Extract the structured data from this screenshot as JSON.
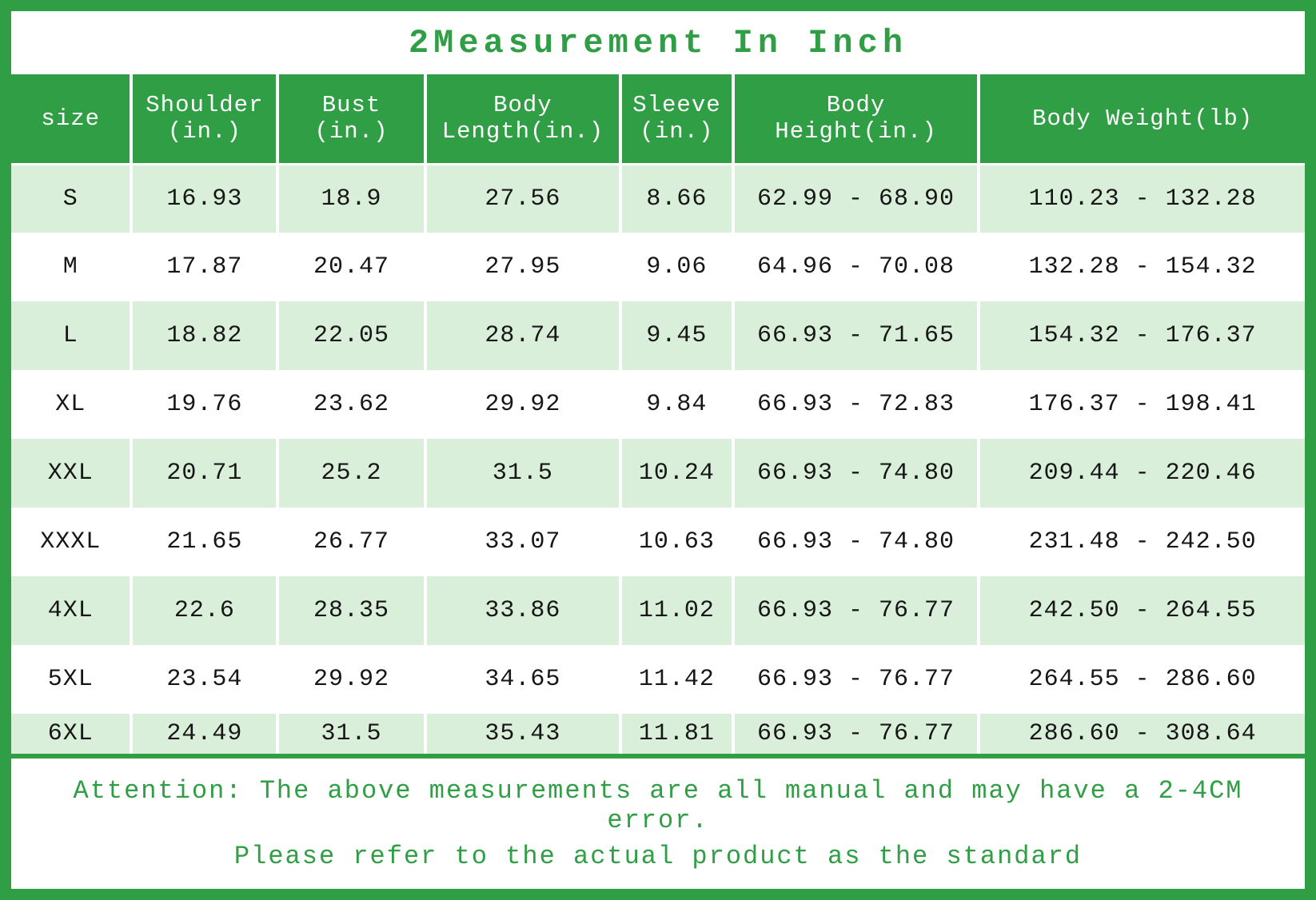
{
  "title": "2Measurement In Inch",
  "colors": {
    "green": "#2f9e44",
    "light_green": "#d9efd9",
    "text_dark": "#161616"
  },
  "attention": {
    "line1": "Attention: The above measurements are all manual and may have a 2-4CM error.",
    "line2": "Please refer to the actual product as the standard"
  },
  "chart_data": {
    "type": "table",
    "title": "2Measurement In Inch",
    "columns": [
      "size",
      "Shoulder\n(in.)",
      "Bust\n(in.)",
      "Body\nLength(in.)",
      "Sleeve\n(in.)",
      "Body\nHeight(in.)",
      "Body Weight(lb)"
    ],
    "rows": [
      [
        "S",
        "16.93",
        "18.9",
        "27.56",
        "8.66",
        "62.99 - 68.90",
        "110.23 - 132.28"
      ],
      [
        "M",
        "17.87",
        "20.47",
        "27.95",
        "9.06",
        "64.96 - 70.08",
        "132.28 - 154.32"
      ],
      [
        "L",
        "18.82",
        "22.05",
        "28.74",
        "9.45",
        "66.93 - 71.65",
        "154.32 - 176.37"
      ],
      [
        "XL",
        "19.76",
        "23.62",
        "29.92",
        "9.84",
        "66.93 - 72.83",
        "176.37 - 198.41"
      ],
      [
        "XXL",
        "20.71",
        "25.2",
        "31.5",
        "10.24",
        "66.93 - 74.80",
        "209.44 - 220.46"
      ],
      [
        "XXXL",
        "21.65",
        "26.77",
        "33.07",
        "10.63",
        "66.93 - 74.80",
        "231.48 - 242.50"
      ],
      [
        "4XL",
        "22.6",
        "28.35",
        "33.86",
        "11.02",
        "66.93 - 76.77",
        "242.50 - 264.55"
      ],
      [
        "5XL",
        "23.54",
        "29.92",
        "34.65",
        "11.42",
        "66.93 - 76.77",
        "264.55 - 286.60"
      ],
      [
        "6XL",
        "24.49",
        "31.5",
        "35.43",
        "11.81",
        "66.93 - 76.77",
        "286.60 - 308.64"
      ]
    ]
  }
}
